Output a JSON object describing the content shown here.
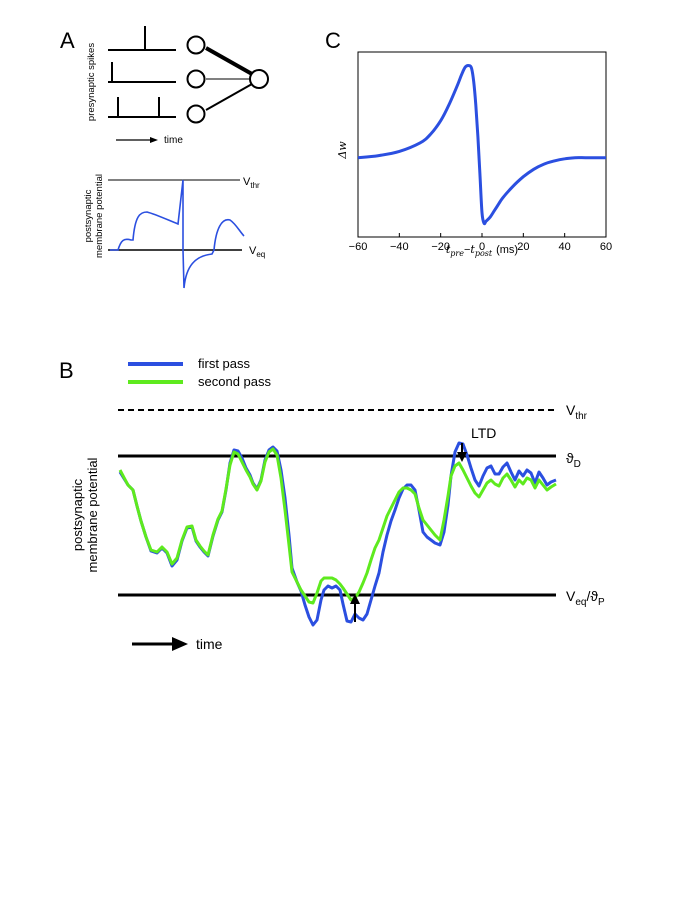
{
  "panels": {
    "a": "A",
    "b": "B",
    "c": "C"
  },
  "panel_a": {
    "presynaptic_label": "presynaptic spikes",
    "time_label": "time",
    "membrane_label_line1": "postsynaptic",
    "membrane_label_line2": "membrane potential",
    "vthr_base": "V",
    "vthr_sub": "thr",
    "veq_base": "V",
    "veq_sub": "eq",
    "trace_color": "#2b4fe0"
  },
  "panel_b": {
    "legend_first": "first pass",
    "legend_second": "second pass",
    "first_color": "#2b4fe0",
    "second_color": "#5eea1e",
    "vthr_base": "V",
    "vthr_sub": "thr",
    "theta_d_base": "ϑ",
    "theta_d_sub": "D",
    "veq_base": "V",
    "veq_sub": "eq",
    "veq_slash": "/ϑ",
    "theta_p_sub": "P",
    "ltd_label": "LTD",
    "ylabel_line1": "postsynaptic",
    "ylabel_line2": "membrane potential",
    "time_label": "time"
  },
  "chart_data": {
    "type": "line",
    "title": "",
    "xlabel_prefix": "t",
    "xlabel_sub_pre": "pre",
    "xlabel_minus": "−",
    "xlabel_sub_post": "post",
    "xlabel_unit": "(ms)",
    "ylabel": "Δw",
    "xlim": [
      -60,
      60
    ],
    "ylim": [
      -0.75,
      1.0
    ],
    "xticks": [
      "−60",
      "−40",
      "−20",
      "0",
      "20",
      "40",
      "60"
    ],
    "xtick_values": [
      -60,
      -40,
      -20,
      0,
      20,
      40,
      60
    ],
    "line_color": "#2b4fe0",
    "series": [
      {
        "name": "STDP window",
        "x": [
          -60,
          -50,
          -40,
          -30,
          -25,
          -20,
          -16,
          -12,
          -10,
          -8,
          -6,
          -5,
          -4,
          -3,
          -2,
          -1,
          0,
          1,
          2,
          4,
          6,
          8,
          10,
          15,
          20,
          25,
          30,
          35,
          40,
          45,
          50,
          55,
          60
        ],
        "y": [
          0.0,
          0.02,
          0.06,
          0.14,
          0.22,
          0.35,
          0.5,
          0.68,
          0.78,
          0.86,
          0.87,
          0.84,
          0.72,
          0.5,
          0.2,
          -0.15,
          -0.52,
          -0.62,
          -0.6,
          -0.56,
          -0.5,
          -0.44,
          -0.38,
          -0.27,
          -0.18,
          -0.11,
          -0.06,
          -0.03,
          -0.01,
          0.0,
          0.0,
          0.0,
          0.0
        ]
      }
    ]
  }
}
